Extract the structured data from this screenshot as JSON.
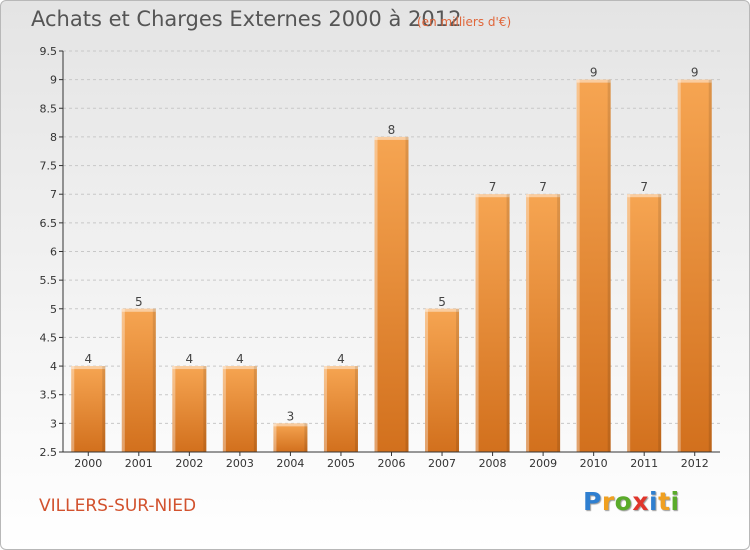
{
  "header": {
    "title": "Achats et Charges Externes 2000 à 2012",
    "unit": "(en milliers d'€)"
  },
  "footer": {
    "commune": "VILLERS-SUR-NIED",
    "logo": [
      {
        "letter": "P",
        "color": "#2f7fd0"
      },
      {
        "letter": "r",
        "color": "#f0a020"
      },
      {
        "letter": "o",
        "color": "#5aab2a"
      },
      {
        "letter": "x",
        "color": "#e0352b"
      },
      {
        "letter": "i",
        "color": "#2f7fd0"
      },
      {
        "letter": "t",
        "color": "#f0a020"
      },
      {
        "letter": "i",
        "color": "#5aab2a"
      }
    ]
  },
  "chart_data": {
    "type": "bar",
    "title": "Achats et Charges Externes 2000 à 2012",
    "subtitle": "(en milliers d'€)",
    "categories": [
      "2000",
      "2001",
      "2002",
      "2003",
      "2004",
      "2005",
      "2006",
      "2007",
      "2008",
      "2009",
      "2010",
      "2011",
      "2012"
    ],
    "values": [
      4,
      5,
      4,
      4,
      3,
      4,
      8,
      5,
      7,
      7,
      9,
      7,
      9
    ],
    "ylim": [
      2.5,
      9.5
    ],
    "yticks": [
      2.5,
      3,
      3.5,
      4,
      4.5,
      5,
      5.5,
      6,
      6.5,
      7,
      7.5,
      8,
      8.5,
      9,
      9.5
    ],
    "ytick_labels": [
      "2.5",
      "3",
      "3.5",
      "4",
      "4.5",
      "5",
      "5.5",
      "6",
      "6.5",
      "7",
      "7.5",
      "8",
      "8.5",
      "9",
      "9.5"
    ],
    "grid": true,
    "colors": {
      "bar_light": "#f6a552",
      "bar_dark": "#d2701d",
      "grid": "#c8c8c8",
      "axis": "#333333"
    }
  }
}
